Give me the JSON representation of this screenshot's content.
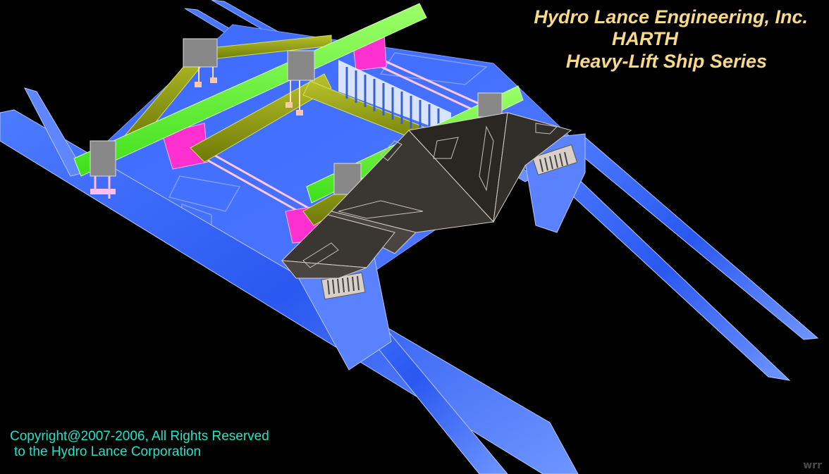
{
  "header": {
    "company": "Hydro Lance Engineering, Inc.",
    "model": "HARTH",
    "series": "Heavy-Lift Ship Series"
  },
  "footer": {
    "copyright_line1": "Copyright@2007-2006, All Rights Reserved",
    "copyright_line2": "to the Hydro Lance Corporation",
    "signature": "wrr"
  },
  "colors": {
    "background": "#000000",
    "title": "#f7d988",
    "copyright": "#22e3c8",
    "hull_blue": "#3366ff",
    "deck_blue": "#3f6dff",
    "beam_green": "#6dff2e",
    "beam_olive": "#8a9a10",
    "pillar_magenta": "#ff2fd0",
    "pod_gray": "#3a3632",
    "bridge_dark": "#2a2622"
  }
}
